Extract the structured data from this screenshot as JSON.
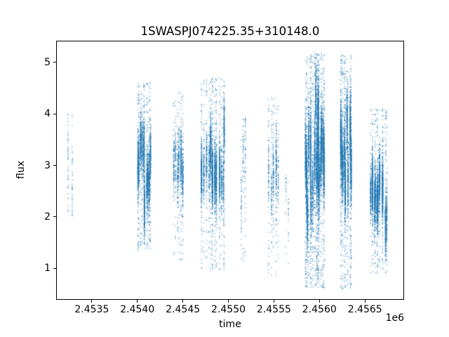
{
  "window": {
    "background": "#ffffff"
  },
  "chart_data": {
    "type": "scatter",
    "title": "1SWASPJ074225.35+310148.0",
    "xlabel": "time",
    "ylabel": "flux",
    "x_offset_text": "1e6",
    "xlim": [
      2453108,
      2456930
    ],
    "ylim": [
      0.39,
      5.42
    ],
    "x_ticks": [
      {
        "value": 2453500,
        "label": "2.4535"
      },
      {
        "value": 2454000,
        "label": "2.4540"
      },
      {
        "value": 2454500,
        "label": "2.4545"
      },
      {
        "value": 2455000,
        "label": "2.4550"
      },
      {
        "value": 2455500,
        "label": "2.4555"
      },
      {
        "value": 2456000,
        "label": "2.4560"
      },
      {
        "value": 2456500,
        "label": "2.4565"
      }
    ],
    "y_ticks": [
      {
        "value": 1,
        "label": "1"
      },
      {
        "value": 2,
        "label": "2"
      },
      {
        "value": 3,
        "label": "3"
      },
      {
        "value": 4,
        "label": "4"
      },
      {
        "value": 5,
        "label": "5"
      }
    ],
    "grid": false,
    "legend": null,
    "marker_color": "#1f77b4",
    "marker_alpha": 0.5,
    "marker_size": 1.5,
    "random_seed": 42,
    "clusters": [
      {
        "jd_center": 2453262,
        "jd_spread": 25,
        "nights": 2,
        "points": 90,
        "flux_min": 2.0,
        "flux_max": 4.05,
        "flux_mean": 3.0,
        "night_sigma": 0.35,
        "point_sigma": 0.45,
        "tail_frac": 0.3
      },
      {
        "jd_center": 2454075,
        "jd_spread": 75,
        "nights": 10,
        "points": 2600,
        "flux_min": 1.35,
        "flux_max": 4.6,
        "flux_mean": 3.0,
        "night_sigma": 0.3,
        "point_sigma": 0.28,
        "tail_frac": 0.18
      },
      {
        "jd_center": 2454450,
        "jd_spread": 55,
        "nights": 6,
        "points": 900,
        "flux_min": 1.15,
        "flux_max": 4.45,
        "flux_mean": 3.0,
        "night_sigma": 0.3,
        "point_sigma": 0.3,
        "tail_frac": 0.2
      },
      {
        "jd_center": 2454840,
        "jd_spread": 125,
        "nights": 13,
        "points": 3200,
        "flux_min": 0.95,
        "flux_max": 4.7,
        "flux_mean": 3.0,
        "night_sigma": 0.32,
        "point_sigma": 0.3,
        "tail_frac": 0.18
      },
      {
        "jd_center": 2455165,
        "jd_spread": 22,
        "nights": 3,
        "points": 160,
        "flux_min": 1.1,
        "flux_max": 3.95,
        "flux_mean": 2.9,
        "night_sigma": 0.4,
        "point_sigma": 0.45,
        "tail_frac": 0.3
      },
      {
        "jd_center": 2455495,
        "jd_spread": 52,
        "nights": 5,
        "points": 550,
        "flux_min": 0.85,
        "flux_max": 4.35,
        "flux_mean": 2.95,
        "night_sigma": 0.4,
        "point_sigma": 0.35,
        "tail_frac": 0.25
      },
      {
        "jd_center": 2455645,
        "jd_spread": 14,
        "nights": 2,
        "points": 45,
        "flux_min": 1.05,
        "flux_max": 2.8,
        "flux_mean": 2.35,
        "night_sigma": 0.2,
        "point_sigma": 0.3,
        "tail_frac": 0.3
      },
      {
        "jd_center": 2455885,
        "jd_spread": 40,
        "nights": 7,
        "points": 2200,
        "flux_min": 0.6,
        "flux_max": 5.15,
        "flux_mean": 3.1,
        "night_sigma": 0.5,
        "point_sigma": 0.35,
        "tail_frac": 0.2
      },
      {
        "jd_center": 2456000,
        "jd_spread": 50,
        "nights": 9,
        "points": 3800,
        "flux_min": 0.6,
        "flux_max": 5.2,
        "flux_mean": 3.3,
        "night_sigma": 0.5,
        "point_sigma": 0.35,
        "tail_frac": 0.18
      },
      {
        "jd_center": 2456290,
        "jd_spread": 58,
        "nights": 9,
        "points": 3400,
        "flux_min": 0.6,
        "flux_max": 5.15,
        "flux_mean": 3.3,
        "night_sigma": 0.4,
        "point_sigma": 0.32,
        "tail_frac": 0.18
      },
      {
        "jd_center": 2456645,
        "jd_spread": 88,
        "nights": 12,
        "points": 3000,
        "flux_min": 0.9,
        "flux_max": 4.1,
        "flux_mean": 2.4,
        "night_sigma": 0.3,
        "point_sigma": 0.28,
        "tail_frac": 0.15
      }
    ]
  }
}
